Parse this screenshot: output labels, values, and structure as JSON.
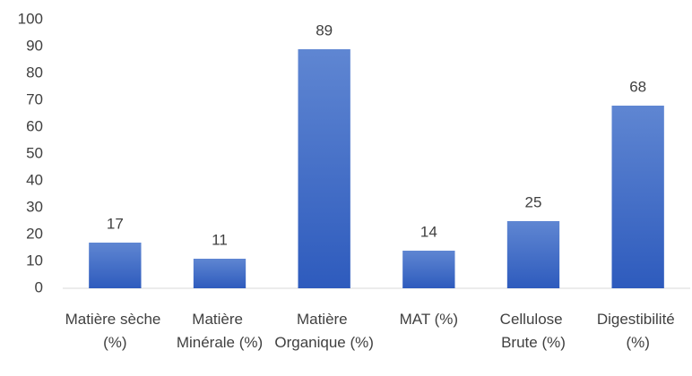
{
  "chart_data": {
    "type": "bar",
    "categories": [
      "Matière sèche (%)",
      "Matière Minérale (%)",
      "Matière Organique (%)",
      "MAT (%)",
      "Cellulose Brute (%)",
      "Digestibilité (%)"
    ],
    "values": [
      17,
      11,
      89,
      14,
      25,
      68
    ],
    "color": "#4472c4",
    "ylim": [
      0,
      100
    ],
    "yticks": [
      0,
      10,
      20,
      30,
      40,
      50,
      60,
      70,
      80,
      90,
      100
    ],
    "grid": false
  }
}
